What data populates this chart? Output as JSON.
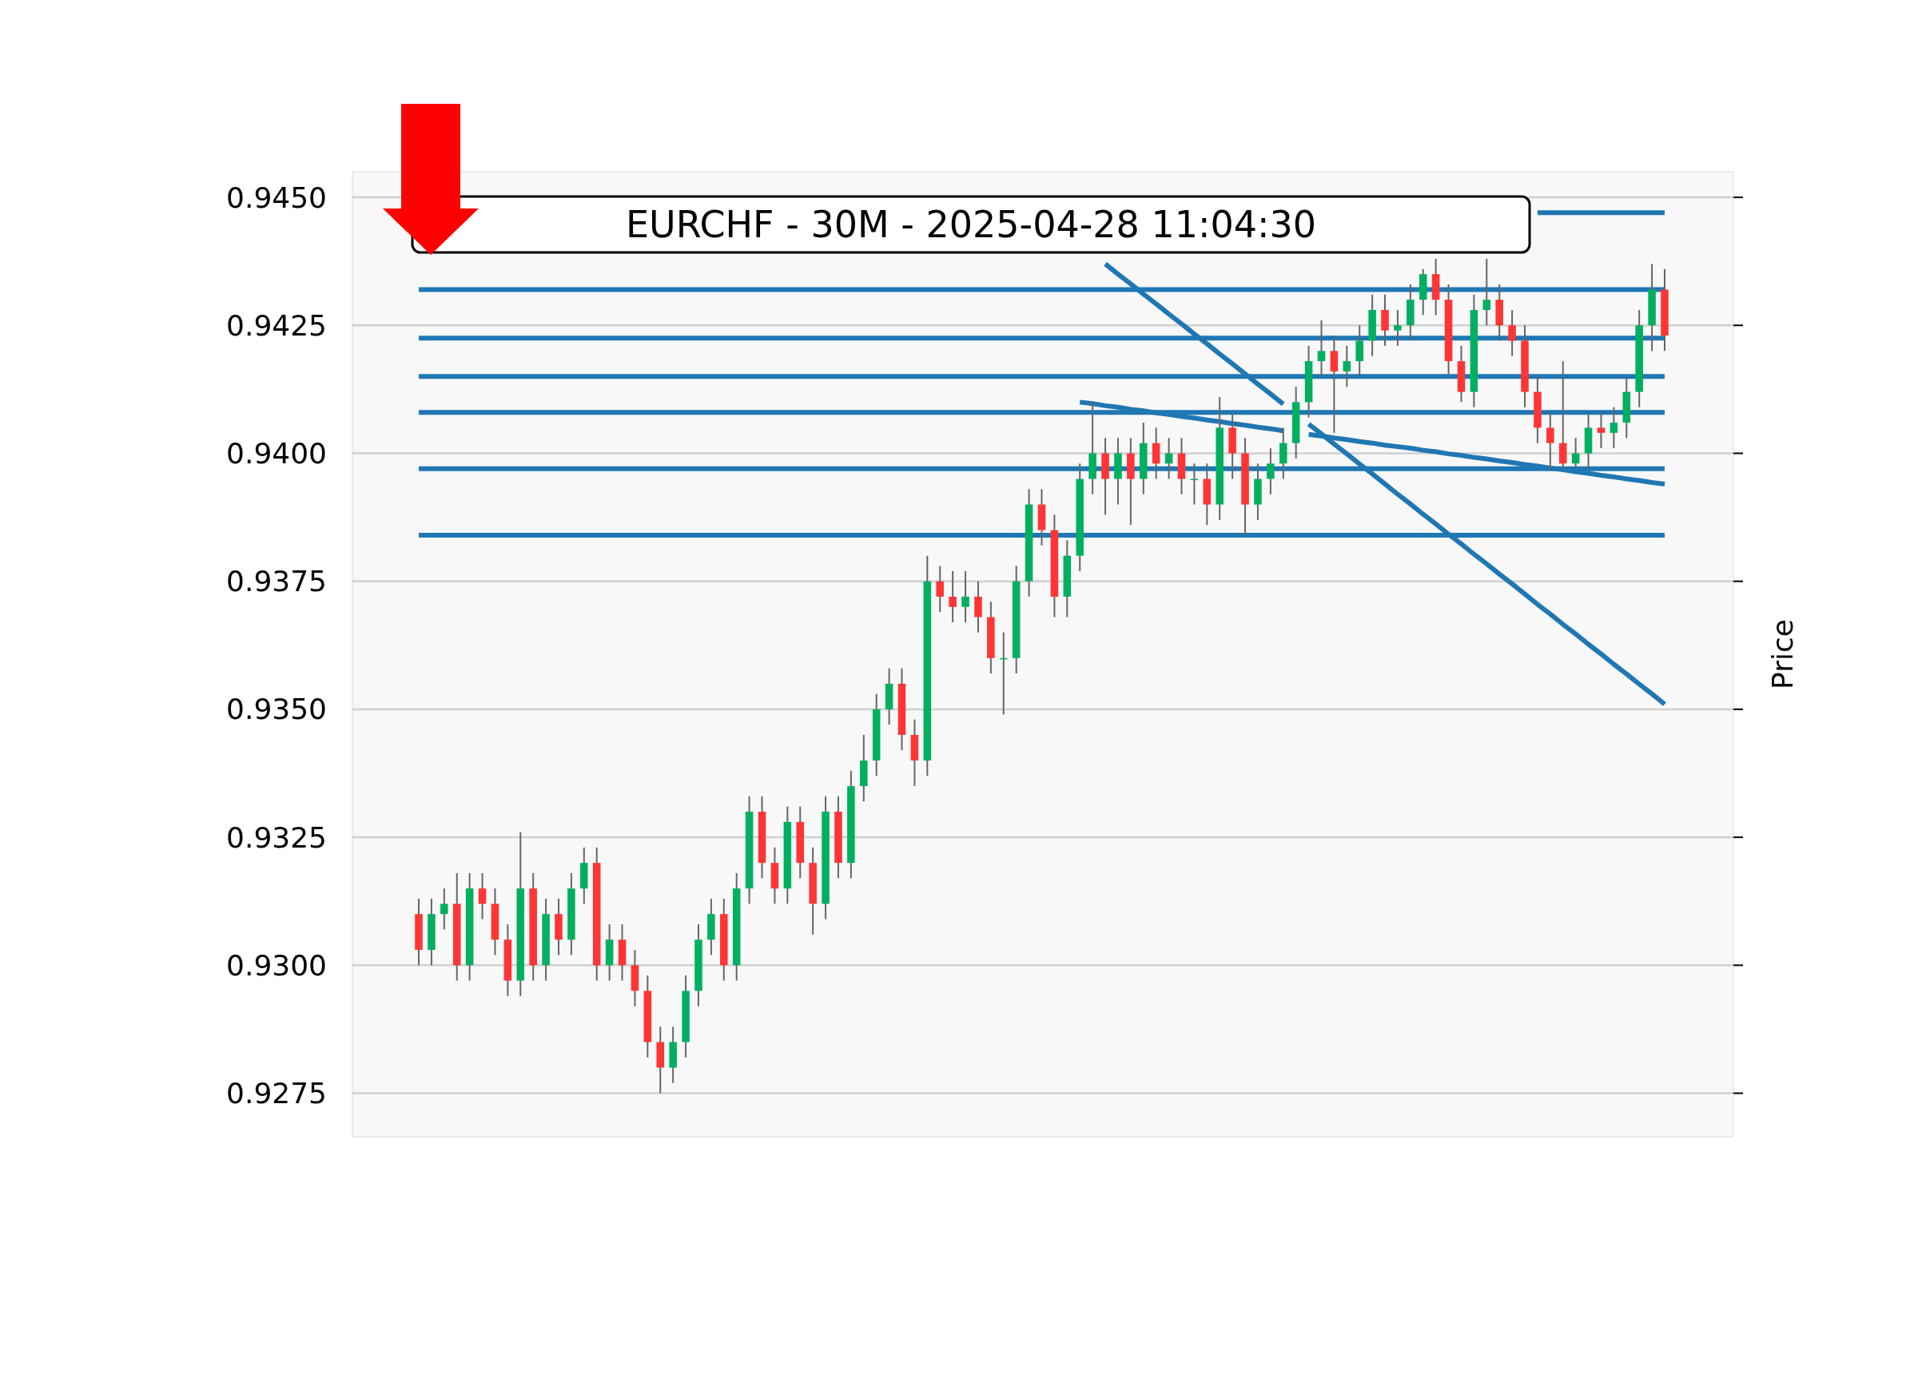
{
  "chart_data": {
    "type": "candlestick",
    "title": "EURCHF - 30M - 2025-04-28 11:04:30",
    "ylabel": "Price",
    "categories": [
      null,
      null,
      null,
      null,
      null,
      null,
      null,
      null,
      null,
      null,
      null,
      null,
      null,
      null,
      null,
      null,
      null,
      null,
      null,
      null,
      null,
      null,
      null,
      null,
      null,
      null,
      null,
      null,
      null,
      null,
      null,
      null,
      null,
      null,
      null,
      null,
      null,
      null,
      null,
      null,
      null,
      null,
      null,
      null,
      null,
      null,
      null,
      null,
      null,
      null,
      null,
      null,
      null,
      null,
      null,
      null,
      null,
      null,
      null,
      null,
      null,
      null,
      null,
      null,
      null,
      null,
      null,
      null,
      null,
      null,
      null,
      null,
      null,
      null,
      null,
      null,
      null,
      null,
      null,
      null,
      null,
      null,
      null,
      null,
      null,
      null,
      null,
      null,
      null,
      null,
      null,
      null,
      null,
      null,
      null,
      null,
      null,
      null,
      null
    ],
    "ohlc": [
      [
        0.931,
        0.9313,
        0.93,
        0.9303
      ],
      [
        0.9303,
        0.9313,
        0.93,
        0.931
      ],
      [
        0.931,
        0.9315,
        0.9307,
        0.9312
      ],
      [
        0.9312,
        0.9318,
        0.9297,
        0.93
      ],
      [
        0.93,
        0.9318,
        0.9297,
        0.9315
      ],
      [
        0.9315,
        0.9318,
        0.9309,
        0.9312
      ],
      [
        0.9312,
        0.9315,
        0.9302,
        0.9305
      ],
      [
        0.9305,
        0.9308,
        0.9294,
        0.9297
      ],
      [
        0.9297,
        0.9326,
        0.9294,
        0.9315
      ],
      [
        0.9315,
        0.9318,
        0.9297,
        0.93
      ],
      [
        0.93,
        0.9313,
        0.9297,
        0.931
      ],
      [
        0.931,
        0.9313,
        0.9302,
        0.9305
      ],
      [
        0.9305,
        0.9318,
        0.9302,
        0.9315
      ],
      [
        0.9315,
        0.9323,
        0.9312,
        0.932
      ],
      [
        0.932,
        0.9323,
        0.9297,
        0.93
      ],
      [
        0.93,
        0.9308,
        0.9297,
        0.9305
      ],
      [
        0.9305,
        0.9308,
        0.9297,
        0.93
      ],
      [
        0.93,
        0.9303,
        0.9292,
        0.9295
      ],
      [
        0.9295,
        0.9298,
        0.9282,
        0.9285
      ],
      [
        0.9285,
        0.9288,
        0.9275,
        0.928
      ],
      [
        0.928,
        0.9288,
        0.9277,
        0.9285
      ],
      [
        0.9285,
        0.9298,
        0.9282,
        0.9295
      ],
      [
        0.9295,
        0.9308,
        0.9292,
        0.9305
      ],
      [
        0.9305,
        0.9313,
        0.9302,
        0.931
      ],
      [
        0.931,
        0.9313,
        0.9297,
        0.93
      ],
      [
        0.93,
        0.9318,
        0.9297,
        0.9315
      ],
      [
        0.9315,
        0.9333,
        0.9312,
        0.933
      ],
      [
        0.933,
        0.9333,
        0.9317,
        0.932
      ],
      [
        0.932,
        0.9323,
        0.9312,
        0.9315
      ],
      [
        0.9315,
        0.9331,
        0.9312,
        0.9328
      ],
      [
        0.9328,
        0.9331,
        0.9317,
        0.932
      ],
      [
        0.932,
        0.9323,
        0.9306,
        0.9312
      ],
      [
        0.9312,
        0.9333,
        0.9309,
        0.933
      ],
      [
        0.933,
        0.9333,
        0.9317,
        0.932
      ],
      [
        0.932,
        0.9338,
        0.9317,
        0.9335
      ],
      [
        0.9335,
        0.9345,
        0.9332,
        0.934
      ],
      [
        0.934,
        0.9353,
        0.9337,
        0.935
      ],
      [
        0.935,
        0.9358,
        0.9347,
        0.9355
      ],
      [
        0.9355,
        0.9358,
        0.9342,
        0.9345
      ],
      [
        0.9345,
        0.9348,
        0.9335,
        0.934
      ],
      [
        0.934,
        0.938,
        0.9337,
        0.9375
      ],
      [
        0.9375,
        0.9378,
        0.9369,
        0.9372
      ],
      [
        0.9372,
        0.9377,
        0.9367,
        0.937
      ],
      [
        0.937,
        0.9377,
        0.9367,
        0.9372
      ],
      [
        0.9372,
        0.9375,
        0.9365,
        0.9368
      ],
      [
        0.9368,
        0.9371,
        0.9357,
        0.936
      ],
      [
        0.936,
        0.9365,
        0.9349,
        0.936
      ],
      [
        0.936,
        0.9378,
        0.9357,
        0.9375
      ],
      [
        0.9375,
        0.9393,
        0.9372,
        0.939
      ],
      [
        0.939,
        0.9393,
        0.9382,
        0.9385
      ],
      [
        0.9385,
        0.9388,
        0.9368,
        0.9372
      ],
      [
        0.9372,
        0.9383,
        0.9368,
        0.938
      ],
      [
        0.938,
        0.9398,
        0.9377,
        0.9395
      ],
      [
        0.9395,
        0.941,
        0.9392,
        0.94
      ],
      [
        0.94,
        0.9403,
        0.9388,
        0.9395
      ],
      [
        0.9395,
        0.9403,
        0.939,
        0.94
      ],
      [
        0.94,
        0.9403,
        0.9386,
        0.9395
      ],
      [
        0.9395,
        0.9406,
        0.9392,
        0.9402
      ],
      [
        0.9402,
        0.9405,
        0.9395,
        0.9398
      ],
      [
        0.9398,
        0.9403,
        0.9395,
        0.94
      ],
      [
        0.94,
        0.9403,
        0.9392,
        0.9395
      ],
      [
        0.9395,
        0.9398,
        0.939,
        0.9395
      ],
      [
        0.9395,
        0.9398,
        0.9386,
        0.939
      ],
      [
        0.939,
        0.9411,
        0.9387,
        0.9405
      ],
      [
        0.9405,
        0.9408,
        0.9395,
        0.94
      ],
      [
        0.94,
        0.9403,
        0.9384,
        0.939
      ],
      [
        0.939,
        0.9398,
        0.9387,
        0.9395
      ],
      [
        0.9395,
        0.9401,
        0.9392,
        0.9398
      ],
      [
        0.9398,
        0.9405,
        0.9395,
        0.9402
      ],
      [
        0.9402,
        0.9413,
        0.9399,
        0.941
      ],
      [
        0.941,
        0.9421,
        0.9407,
        0.9418
      ],
      [
        0.9418,
        0.9426,
        0.9415,
        0.942
      ],
      [
        0.942,
        0.9423,
        0.9404,
        0.9416
      ],
      [
        0.9416,
        0.9421,
        0.9413,
        0.9418
      ],
      [
        0.9418,
        0.9425,
        0.9415,
        0.9422
      ],
      [
        0.9422,
        0.9431,
        0.9419,
        0.9428
      ],
      [
        0.9428,
        0.9431,
        0.9421,
        0.9424
      ],
      [
        0.9424,
        0.9428,
        0.9421,
        0.9425
      ],
      [
        0.9425,
        0.9433,
        0.9422,
        0.943
      ],
      [
        0.943,
        0.9436,
        0.9427,
        0.9435
      ],
      [
        0.9435,
        0.9438,
        0.9427,
        0.943
      ],
      [
        0.943,
        0.9433,
        0.9415,
        0.9418
      ],
      [
        0.9418,
        0.9421,
        0.941,
        0.9412
      ],
      [
        0.9412,
        0.9431,
        0.9409,
        0.9428
      ],
      [
        0.9428,
        0.9438,
        0.9425,
        0.943
      ],
      [
        0.943,
        0.9433,
        0.9422,
        0.9425
      ],
      [
        0.9425,
        0.9428,
        0.9419,
        0.9422
      ],
      [
        0.9422,
        0.9425,
        0.9409,
        0.9412
      ],
      [
        0.9412,
        0.9415,
        0.9402,
        0.9405
      ],
      [
        0.9405,
        0.9408,
        0.9397,
        0.9402
      ],
      [
        0.9402,
        0.9418,
        0.9397,
        0.9398
      ],
      [
        0.9398,
        0.9403,
        0.9397,
        0.94
      ],
      [
        0.94,
        0.9408,
        0.9397,
        0.9405
      ],
      [
        0.9405,
        0.9408,
        0.9401,
        0.9404
      ],
      [
        0.9404,
        0.9409,
        0.9401,
        0.9406
      ],
      [
        0.9406,
        0.9415,
        0.9403,
        0.9412
      ],
      [
        0.9412,
        0.9428,
        0.9409,
        0.9425
      ],
      [
        0.9425,
        0.9437,
        0.942,
        0.9432
      ],
      [
        0.9432,
        0.9436,
        0.942,
        0.9423
      ]
    ],
    "series": [
      {
        "type": "line",
        "color": "#1f77b4",
        "values": [
          null,
          null,
          null,
          null,
          null,
          null,
          null,
          null,
          null,
          null,
          null,
          null,
          null,
          null,
          null,
          null,
          null,
          null,
          null,
          null,
          null,
          null,
          null,
          null,
          null,
          null,
          null,
          null,
          null,
          null,
          null,
          null,
          null,
          null,
          null,
          null,
          null,
          null,
          null,
          null,
          null,
          null,
          null,
          null,
          null,
          null,
          null,
          null,
          null,
          null,
          null,
          null,
          null,
          null,
          null,
          null,
          null,
          null,
          null,
          null,
          null,
          null,
          null,
          null,
          null,
          null,
          null,
          null,
          null,
          null,
          null,
          null,
          null,
          null,
          null,
          null,
          null,
          null,
          null,
          null,
          null,
          null,
          null,
          null,
          null,
          null,
          null,
          null,
          0.9447,
          0.9447,
          0.9447,
          0.9447,
          0.9447,
          0.9447,
          0.9447,
          0.9447,
          0.9447,
          0.9447,
          0.9447
        ]
      },
      {
        "type": "line",
        "color": "#1f77b4",
        "values": [
          null,
          null,
          null,
          null,
          null,
          null,
          null,
          null,
          null,
          null,
          null,
          null,
          null,
          null,
          null,
          null,
          null,
          null,
          null,
          null,
          null,
          null,
          null,
          null,
          null,
          null,
          null,
          null,
          null,
          null,
          null,
          null,
          null,
          null,
          null,
          null,
          null,
          null,
          null,
          null,
          null,
          null,
          null,
          null,
          null,
          null,
          null,
          null,
          null,
          null,
          null,
          null,
          0.941,
          0.94097,
          0.94093,
          0.9409,
          0.94086,
          0.94083,
          0.94079,
          0.94076,
          0.94072,
          0.94069,
          0.94065,
          0.94062,
          0.94058,
          0.94055,
          0.94051,
          0.94048,
          0.94044,
          null,
          0.94037,
          0.94034,
          0.9403,
          0.94027,
          0.94023,
          0.9402,
          0.94016,
          0.94013,
          0.9401,
          0.94006,
          0.94003,
          0.93999,
          0.93996,
          0.93992,
          0.93989,
          0.93985,
          0.93982,
          0.93978,
          0.93975,
          0.93971,
          0.93968,
          0.93964,
          0.93961,
          0.93957,
          0.93954,
          0.9395,
          0.93947,
          0.93943,
          0.9394
        ]
      },
      {
        "type": "line",
        "color": "#1f77b4",
        "values": [
          null,
          null,
          null,
          null,
          null,
          null,
          null,
          null,
          null,
          null,
          null,
          null,
          null,
          null,
          null,
          null,
          null,
          null,
          null,
          null,
          null,
          null,
          null,
          null,
          null,
          null,
          null,
          null,
          null,
          null,
          null,
          null,
          null,
          null,
          null,
          null,
          null,
          null,
          null,
          null,
          null,
          null,
          null,
          null,
          null,
          null,
          null,
          null,
          null,
          null,
          null,
          null,
          null,
          null,
          0.9437,
          0.9435,
          0.94331,
          0.94311,
          0.94292,
          0.94272,
          0.94253,
          0.94233,
          0.94214,
          0.94194,
          0.94175,
          0.94155,
          0.94135,
          0.94116,
          0.94096,
          null,
          0.94057,
          0.94038,
          0.94018,
          0.93999,
          0.93979,
          0.9396,
          0.9394,
          0.9392,
          0.93901,
          0.93881,
          0.93862,
          0.93842,
          0.93823,
          0.93803,
          0.93784,
          0.93764,
          0.93745,
          0.93725,
          0.93705,
          0.93686,
          0.93666,
          0.93647,
          0.93627,
          0.93608,
          0.93588,
          0.93569,
          0.93549,
          0.9353,
          0.9351
        ]
      }
    ],
    "ref_lines": [
      {
        "axis": "y",
        "value": 0.9432,
        "color": "#1f77b4"
      },
      {
        "axis": "y",
        "value": 0.94225,
        "color": "#1f77b4"
      },
      {
        "axis": "y",
        "value": 0.9415,
        "color": "#1f77b4"
      },
      {
        "axis": "y",
        "value": 0.9408,
        "color": "#1f77b4"
      },
      {
        "axis": "y",
        "value": 0.9397,
        "color": "#1f77b4"
      },
      {
        "axis": "y",
        "value": 0.9384,
        "color": "#1f77b4"
      }
    ],
    "ylim": [
      0.92665,
      0.9455
    ],
    "yticks": [
      {
        "value": 0.9275,
        "label": "0.9275"
      },
      {
        "value": 0.93,
        "label": "0.9300"
      },
      {
        "value": 0.9325,
        "label": "0.9325"
      },
      {
        "value": 0.935,
        "label": "0.9350"
      },
      {
        "value": 0.9375,
        "label": "0.9375"
      },
      {
        "value": 0.94,
        "label": "0.9400"
      },
      {
        "value": 0.9425,
        "label": "0.9425"
      },
      {
        "value": 0.945,
        "label": "0.9450"
      }
    ],
    "grid": "y",
    "tick_labels": "y"
  }
}
